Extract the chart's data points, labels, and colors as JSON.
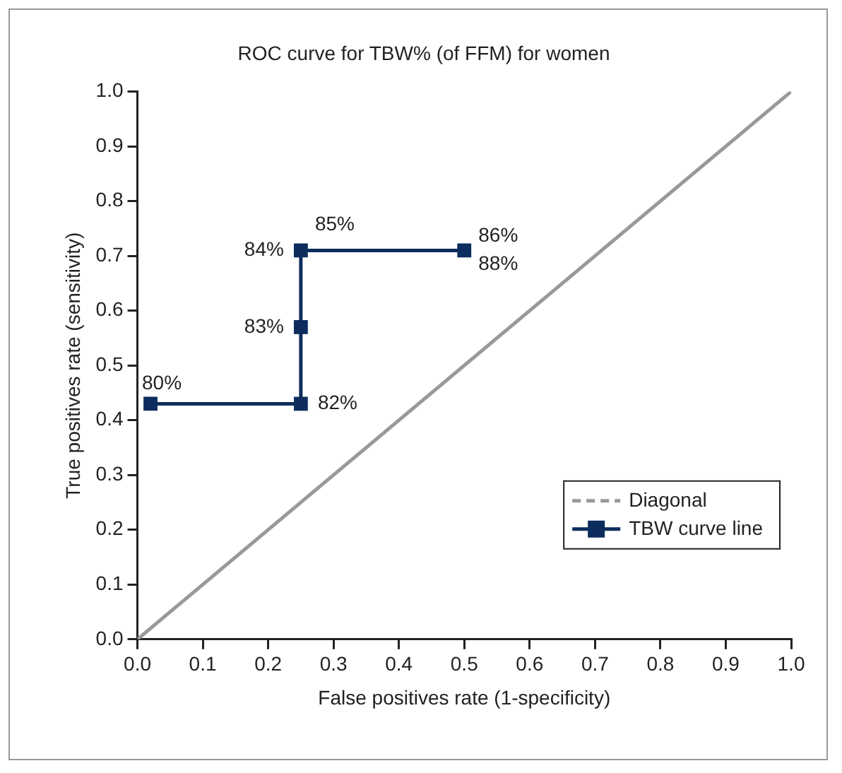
{
  "chart_data": {
    "type": "line",
    "title": "ROC curve for TBW% (of FFM) for women",
    "xlabel": "False positives rate (1-specificity)",
    "ylabel": "True positives rate (sensitivity)",
    "xlim": [
      0,
      1
    ],
    "ylim": [
      0,
      1
    ],
    "xticks": [
      {
        "value": 0,
        "label": "0.0"
      },
      {
        "value": 0.1,
        "label": "0.1"
      },
      {
        "value": 0.2,
        "label": "0.2"
      },
      {
        "value": 0.3,
        "label": "0.3"
      },
      {
        "value": 0.4,
        "label": "0.4"
      },
      {
        "value": 0.5,
        "label": "0.5"
      },
      {
        "value": 0.6,
        "label": "0.6"
      },
      {
        "value": 0.7,
        "label": "0.7"
      },
      {
        "value": 0.8,
        "label": "0.8"
      },
      {
        "value": 0.9,
        "label": "0.9"
      },
      {
        "value": 1,
        "label": "1.0"
      }
    ],
    "yticks": [
      {
        "value": 0,
        "label": "0.0"
      },
      {
        "value": 0.1,
        "label": "0.1"
      },
      {
        "value": 0.2,
        "label": "0.2"
      },
      {
        "value": 0.3,
        "label": "0.3"
      },
      {
        "value": 0.4,
        "label": "0.4"
      },
      {
        "value": 0.5,
        "label": "0.5"
      },
      {
        "value": 0.6,
        "label": "0.6"
      },
      {
        "value": 0.7,
        "label": "0.7"
      },
      {
        "value": 0.8,
        "label": "0.8"
      },
      {
        "value": 0.9,
        "label": "0.9"
      },
      {
        "value": 1,
        "label": "1.0"
      }
    ],
    "grid": false,
    "legend": "bottom right",
    "series": [
      {
        "name": "Diagonal",
        "color": "#999999",
        "x": [
          0,
          1
        ],
        "values": [
          0,
          1
        ],
        "marker": "none",
        "line_style": "solid"
      },
      {
        "name": "TBW curve line",
        "color": "#0d2d5e",
        "x": [
          0.02,
          0.25,
          0.25,
          0.25,
          0.5
        ],
        "values": [
          0.43,
          0.43,
          0.57,
          0.71,
          0.71
        ],
        "marker": "square"
      }
    ],
    "annotations": [
      {
        "text": "80%",
        "x": 0.02,
        "y": 0.43
      },
      {
        "text": "82%",
        "x": 0.25,
        "y": 0.43
      },
      {
        "text": "83%",
        "x": 0.25,
        "y": 0.57
      },
      {
        "text": "84%",
        "x": 0.25,
        "y": 0.71
      },
      {
        "text": "85%",
        "x": 0.25,
        "y": 0.71
      },
      {
        "text": "86%",
        "x": 0.5,
        "y": 0.71
      },
      {
        "text": "88%",
        "x": 0.5,
        "y": 0.71
      }
    ]
  }
}
